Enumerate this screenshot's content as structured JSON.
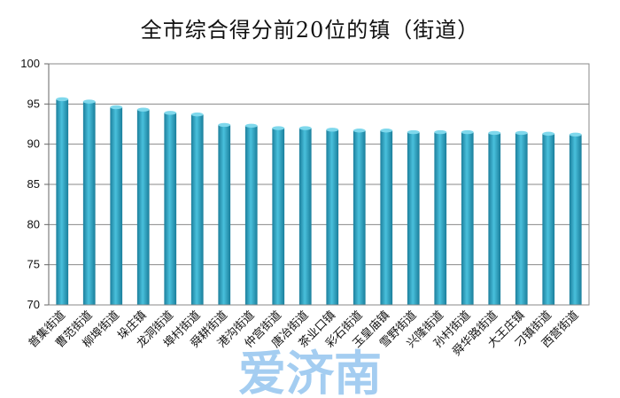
{
  "chart_data": {
    "type": "bar",
    "title": "全市综合得分前20位的镇（街道）",
    "xlabel": "",
    "ylabel": "",
    "ylim": [
      70,
      100
    ],
    "yticks": [
      70,
      75,
      80,
      85,
      90,
      95,
      100
    ],
    "grid": true,
    "legend": "none",
    "bar_color": "#2aa3c4",
    "categories": [
      "普集街道",
      "曹范街道",
      "柳埠街道",
      "垛庄镇",
      "龙洞街道",
      "埠村街道",
      "舜耕街道",
      "港沟街道",
      "仲宫街道",
      "唐冶街道",
      "茶业口镇",
      "彩石街道",
      "玉皇庙镇",
      "雪野街道",
      "兴隆街道",
      "孙村街道",
      "舜华路街道",
      "大王庄镇",
      "刁镇街道",
      "西营街道"
    ],
    "values": [
      95.6,
      95.3,
      94.6,
      94.3,
      93.9,
      93.7,
      92.4,
      92.3,
      92.0,
      92.0,
      91.8,
      91.7,
      91.7,
      91.5,
      91.5,
      91.5,
      91.4,
      91.4,
      91.3,
      91.2
    ]
  },
  "watermark": {
    "text": "爱济南",
    "color": "#5aa6e6"
  }
}
